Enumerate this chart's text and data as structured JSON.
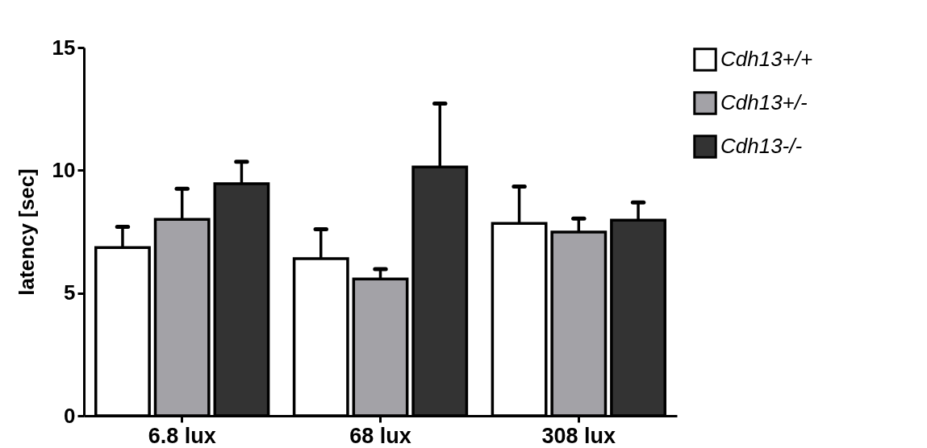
{
  "chart_data": {
    "type": "bar",
    "ylabel": "latency [sec]",
    "categories": [
      "6.8 lux",
      "68 lux",
      "308 lux"
    ],
    "series": [
      {
        "name": "Cdh13+/+",
        "color": "#ffffff",
        "values": [
          6.85,
          6.4,
          7.84
        ],
        "errors": [
          [
            6.85,
            7.7
          ],
          [
            6.4,
            7.6
          ],
          [
            7.84,
            9.34
          ]
        ]
      },
      {
        "name": "Cdh13+/-",
        "color": "#a3a2a7",
        "values": [
          8.0,
          5.57,
          7.48
        ],
        "errors": [
          [
            8.0,
            9.25
          ],
          [
            5.57,
            5.97
          ],
          [
            7.48,
            8.03
          ]
        ]
      },
      {
        "name": "Cdh13-/-",
        "color": "#333333",
        "values": [
          9.45,
          10.13,
          7.97
        ],
        "errors": [
          [
            9.45,
            10.35
          ],
          [
            10.13,
            12.72
          ],
          [
            7.97,
            8.69
          ]
        ]
      }
    ],
    "ylim": [
      0,
      15
    ],
    "yticks": [
      0,
      5,
      10,
      15
    ],
    "grid": false,
    "legend": "top right"
  }
}
